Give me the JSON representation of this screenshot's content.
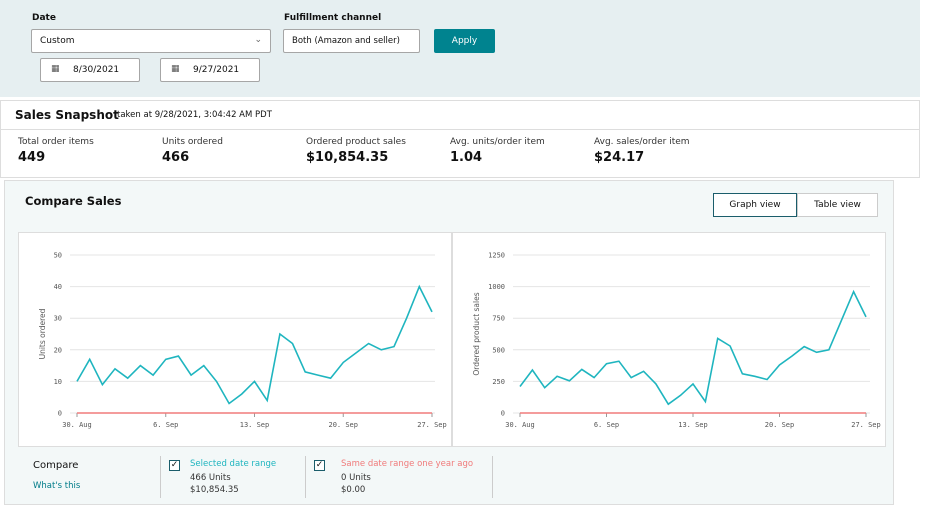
{
  "filters": {
    "date_label": "Date",
    "date_value": "Custom",
    "start_date": "8/30/2021",
    "end_date": "9/27/2021",
    "channel_label": "Fulfillment channel",
    "channel_value": "Both (Amazon and seller)",
    "apply": "Apply"
  },
  "snapshot": {
    "title": "Sales Snapshot",
    "taken": "taken at 9/28/2021, 3:04:42 AM PDT",
    "metrics": [
      {
        "label": "Total order items",
        "value": "449"
      },
      {
        "label": "Units ordered",
        "value": "466"
      },
      {
        "label": "Ordered product sales",
        "value": "$10,854.35"
      },
      {
        "label": "Avg. units/order item",
        "value": "1.04"
      },
      {
        "label": "Avg. sales/order item",
        "value": "$24.17"
      }
    ]
  },
  "compare_sales": {
    "title": "Compare Sales",
    "views": [
      "Graph view",
      "Table view"
    ]
  },
  "chart_data": [
    {
      "type": "line",
      "ylabel": "Units ordered",
      "categories": [
        "30. Aug",
        null,
        null,
        null,
        null,
        null,
        null,
        "6. Sep",
        null,
        null,
        null,
        null,
        null,
        null,
        "13. Sep",
        null,
        null,
        null,
        null,
        null,
        null,
        "20. Sep",
        null,
        null,
        null,
        null,
        null,
        null,
        "27. Sep"
      ],
      "ylim": [
        0,
        50
      ],
      "yticks": [
        0,
        10,
        20,
        30,
        40,
        50
      ],
      "grid": true,
      "series": [
        {
          "name": "Selected date range",
          "color": "#1fb5bf",
          "values": [
            10,
            17,
            9,
            14,
            11,
            15,
            12,
            17,
            18,
            12,
            15,
            10,
            3,
            6,
            10,
            4,
            25,
            22,
            13,
            12,
            11,
            16,
            19,
            22,
            20,
            21,
            30,
            40,
            32
          ]
        },
        {
          "name": "Same date range one year ago",
          "color": "#f07b7b",
          "values": [
            0,
            0,
            0,
            0,
            0,
            0,
            0,
            0,
            0,
            0,
            0,
            0,
            0,
            0,
            0,
            0,
            0,
            0,
            0,
            0,
            0,
            0,
            0,
            0,
            0,
            0,
            0,
            0,
            0
          ]
        }
      ]
    },
    {
      "type": "line",
      "ylabel": "Ordered product sales",
      "categories": [
        "30. Aug",
        null,
        null,
        null,
        null,
        null,
        null,
        "6. Sep",
        null,
        null,
        null,
        null,
        null,
        null,
        "13. Sep",
        null,
        null,
        null,
        null,
        null,
        null,
        "20. Sep",
        null,
        null,
        null,
        null,
        null,
        null,
        "27. Sep"
      ],
      "ylim": [
        0,
        1250
      ],
      "yticks": [
        0,
        250,
        500,
        750,
        1000,
        1250
      ],
      "grid": true,
      "series": [
        {
          "color": "#1fb5bf",
          "values": [
            210,
            340,
            200,
            290,
            255,
            345,
            280,
            390,
            410,
            280,
            330,
            230,
            70,
            140,
            230,
            90,
            590,
            530,
            310,
            290,
            265,
            380,
            450,
            525,
            480,
            500,
            730,
            960,
            760
          ]
        },
        {
          "color": "#f07b7b",
          "values": [
            0,
            0,
            0,
            0,
            0,
            0,
            0,
            0,
            0,
            0,
            0,
            0,
            0,
            0,
            0,
            0,
            0,
            0,
            0,
            0,
            0,
            0,
            0,
            0,
            0,
            0,
            0,
            0,
            0
          ]
        }
      ]
    }
  ],
  "legend": {
    "title": "Compare",
    "link": "What's this",
    "details": [
      [
        "466 Units",
        "$10,854.35"
      ],
      [
        "0 Units",
        "$0.00"
      ]
    ]
  }
}
